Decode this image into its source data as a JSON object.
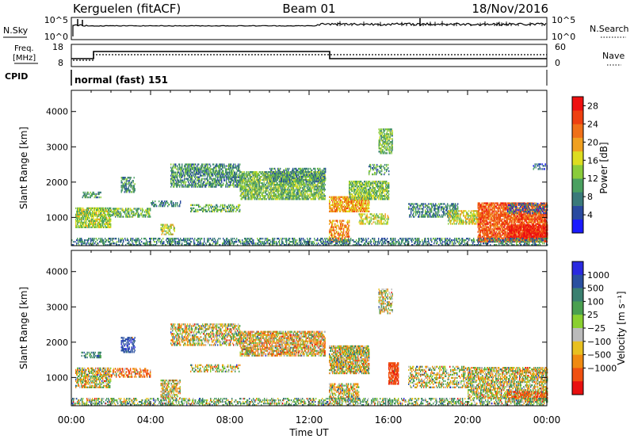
{
  "header": {
    "station": "Kerguelen (fitACF)",
    "beam": "Beam 01",
    "date": "18/Nov/2016"
  },
  "noise_panel": {
    "left_label": "N.Sky",
    "left_ticks": [
      "10^5",
      "10^0"
    ],
    "right_ticks": [
      "10^5",
      "10^0"
    ],
    "right_label": "N.Search"
  },
  "freq_panel": {
    "left_label_1": "Freq.",
    "left_label_2": "[MHz]",
    "left_ticks": [
      "18",
      "8"
    ],
    "right_ticks": [
      "60",
      "0"
    ],
    "right_label": "Nave",
    "cpid_label": "CPID"
  },
  "cpid_text": "normal (fast) 151",
  "colors": {
    "power_scale": [
      "#1a1aff",
      "#2a4aa0",
      "#3a7a7a",
      "#4aa060",
      "#8acc3a",
      "#dddd20",
      "#f0a020",
      "#f07018",
      "#ee4010",
      "#ee1010"
    ],
    "velocity_scale": [
      "#2a2ae0",
      "#2a50a0",
      "#3a8070",
      "#4aa050",
      "#8ad030",
      "#bbbbbb",
      "#e8c020",
      "#f08a10",
      "#f05010",
      "#e81010"
    ]
  },
  "chart_data": [
    {
      "type": "heatmap",
      "name": "power",
      "ylabel": "Slant Range [km]",
      "yticks": [
        "1000",
        "2000",
        "3000",
        "4000"
      ],
      "ylim": [
        200,
        4600
      ],
      "x_ticks": [
        "00:00",
        "04:00",
        "08:00",
        "12:00",
        "16:00",
        "20:00",
        "00:00"
      ],
      "colorbar_label": "Power [dB]",
      "colorbar_ticks": [
        "4",
        "8",
        "12",
        "16",
        "20",
        "24",
        "28"
      ],
      "colorbar_range": [
        0,
        30
      ],
      "regions": [
        {
          "t": [
            0.2,
            2.0
          ],
          "r": [
            700,
            1250
          ],
          "level": 14,
          "density": 0.75
        },
        {
          "t": [
            0.5,
            1.5
          ],
          "r": [
            1550,
            1700
          ],
          "level": 10,
          "density": 0.5
        },
        {
          "t": [
            2.5,
            3.2
          ],
          "r": [
            1700,
            2150
          ],
          "level": 9,
          "density": 0.6
        },
        {
          "t": [
            2.0,
            4.0
          ],
          "r": [
            1000,
            1250
          ],
          "level": 12,
          "density": 0.55
        },
        {
          "t": [
            4.0,
            5.5
          ],
          "r": [
            1300,
            1450
          ],
          "level": 8,
          "density": 0.4
        },
        {
          "t": [
            4.5,
            5.2
          ],
          "r": [
            500,
            800
          ],
          "level": 15,
          "density": 0.5
        },
        {
          "t": [
            5.0,
            8.5
          ],
          "r": [
            1850,
            2500
          ],
          "level": 9,
          "density": 0.6
        },
        {
          "t": [
            6.0,
            8.5
          ],
          "r": [
            1150,
            1350
          ],
          "level": 11,
          "density": 0.5
        },
        {
          "t": [
            8.5,
            12.8
          ],
          "r": [
            1500,
            2300
          ],
          "level": 12,
          "density": 0.7
        },
        {
          "t": [
            10.0,
            12.8
          ],
          "r": [
            2000,
            2400
          ],
          "level": 9,
          "density": 0.5
        },
        {
          "t": [
            13.0,
            15.0
          ],
          "r": [
            1150,
            1600
          ],
          "level": 20,
          "density": 0.75
        },
        {
          "t": [
            13.0,
            14.0
          ],
          "r": [
            300,
            900
          ],
          "level": 21,
          "density": 0.55
        },
        {
          "t": [
            14.0,
            16.0
          ],
          "r": [
            1500,
            2000
          ],
          "level": 13,
          "density": 0.7
        },
        {
          "t": [
            15.5,
            16.2
          ],
          "r": [
            2800,
            3500
          ],
          "level": 12,
          "density": 0.55
        },
        {
          "t": [
            14.5,
            16.0
          ],
          "r": [
            800,
            1100
          ],
          "level": 16,
          "density": 0.5
        },
        {
          "t": [
            15.0,
            16.0
          ],
          "r": [
            2200,
            2500
          ],
          "level": 9,
          "density": 0.4
        },
        {
          "t": [
            17.0,
            19.5
          ],
          "r": [
            1000,
            1400
          ],
          "level": 8,
          "density": 0.5
        },
        {
          "t": [
            19.0,
            20.5
          ],
          "r": [
            800,
            1200
          ],
          "level": 16,
          "density": 0.6
        },
        {
          "t": [
            20.5,
            24.0
          ],
          "r": [
            300,
            1400
          ],
          "level": 24,
          "density": 0.75
        },
        {
          "t": [
            22.0,
            24.0
          ],
          "r": [
            400,
            800
          ],
          "level": 28,
          "density": 0.8
        },
        {
          "t": [
            22.0,
            24.0
          ],
          "r": [
            1100,
            1400
          ],
          "level": 6,
          "density": 0.35
        },
        {
          "t": [
            23.3,
            24.0
          ],
          "r": [
            2350,
            2500
          ],
          "level": 6,
          "density": 0.4
        },
        {
          "t": [
            0.0,
            24.0
          ],
          "r": [
            200,
            400
          ],
          "level": 8,
          "density": 0.45
        }
      ]
    },
    {
      "type": "heatmap",
      "name": "velocity",
      "ylabel": "Slant Range [km]",
      "yticks": [
        "1000",
        "2000",
        "3000",
        "4000"
      ],
      "ylim": [
        200,
        4600
      ],
      "x_ticks": [
        "00:00",
        "04:00",
        "08:00",
        "12:00",
        "16:00",
        "20:00",
        "00:00"
      ],
      "xlabel": "Time UT",
      "colorbar_label": "Velocity [m s⁻¹]",
      "colorbar_ticks": [
        "1000",
        "500",
        "100",
        "25",
        "−25",
        "−100",
        "−500",
        "−1000"
      ],
      "regions": [
        {
          "t": [
            0.2,
            2.0
          ],
          "r": [
            700,
            1250
          ],
          "vel": 0,
          "density": 0.6
        },
        {
          "t": [
            2.5,
            3.2
          ],
          "r": [
            1700,
            2150
          ],
          "vel": 600,
          "density": 0.5
        },
        {
          "t": [
            0.5,
            1.5
          ],
          "r": [
            1550,
            1700
          ],
          "vel": 200,
          "density": 0.4
        },
        {
          "t": [
            2.0,
            4.0
          ],
          "r": [
            1000,
            1250
          ],
          "vel": -150,
          "density": 0.45
        },
        {
          "t": [
            4.5,
            5.5
          ],
          "r": [
            400,
            900
          ],
          "vel": 0,
          "density": 0.55
        },
        {
          "t": [
            5.0,
            8.5
          ],
          "r": [
            1900,
            2500
          ],
          "vel": 0,
          "density": 0.5
        },
        {
          "t": [
            6.0,
            8.5
          ],
          "r": [
            1150,
            1350
          ],
          "vel": 0,
          "density": 0.4
        },
        {
          "t": [
            8.5,
            12.8
          ],
          "r": [
            1600,
            2300
          ],
          "vel": -50,
          "density": 0.65
        },
        {
          "t": [
            13.0,
            15.0
          ],
          "r": [
            1100,
            1900
          ],
          "vel": 0,
          "density": 0.75
        },
        {
          "t": [
            13.0,
            14.5
          ],
          "r": [
            300,
            800
          ],
          "vel": 0,
          "density": 0.55
        },
        {
          "t": [
            15.5,
            16.2
          ],
          "r": [
            2800,
            3500
          ],
          "vel": 0,
          "density": 0.45
        },
        {
          "t": [
            16.0,
            16.5
          ],
          "r": [
            800,
            1400
          ],
          "vel": -400,
          "density": 0.8
        },
        {
          "t": [
            17.0,
            20.0
          ],
          "r": [
            700,
            1300
          ],
          "vel": 0,
          "density": 0.4
        },
        {
          "t": [
            20.0,
            24.0
          ],
          "r": [
            400,
            1300
          ],
          "vel": 0,
          "density": 0.6
        },
        {
          "t": [
            22.0,
            24.0
          ],
          "r": [
            300,
            600
          ],
          "vel": -250,
          "density": 0.5
        },
        {
          "t": [
            0.0,
            24.0
          ],
          "r": [
            200,
            400
          ],
          "vel": 80,
          "density": 0.4
        }
      ]
    }
  ]
}
